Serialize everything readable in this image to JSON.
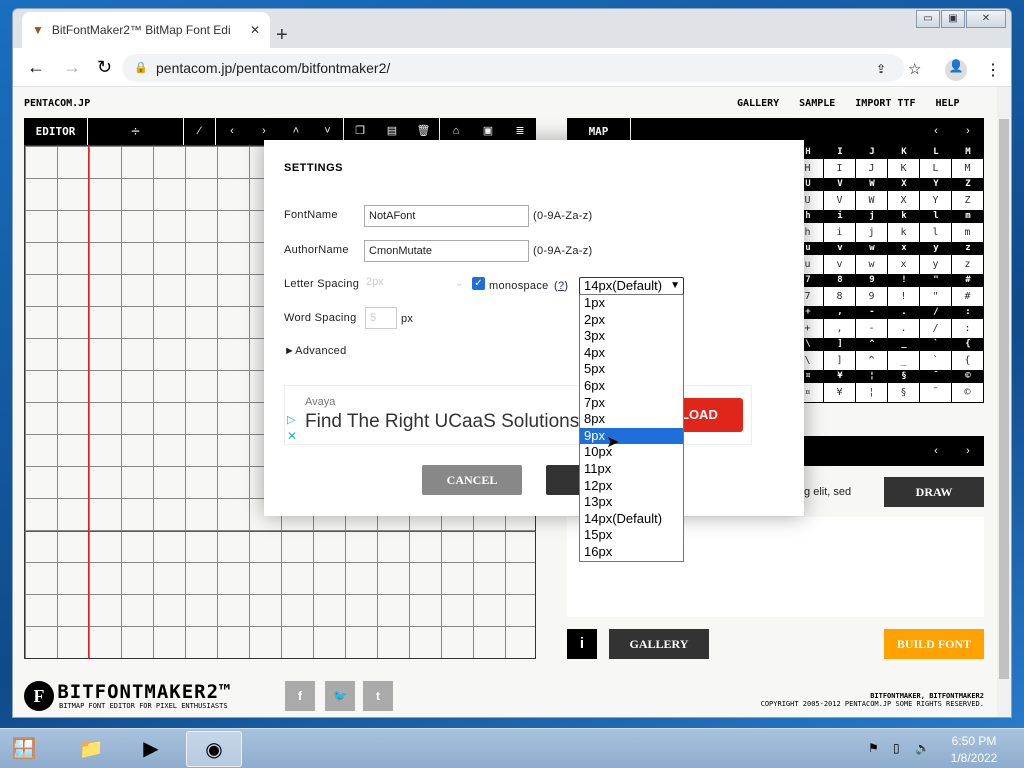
{
  "browser": {
    "tab_title": "BitFontMaker2™ BitMap Font Edi",
    "url": "pentacom.jp/pentacom/bitfontmaker2/"
  },
  "site": {
    "brand": "PENTACOM.JP",
    "nav": [
      "GALLERY",
      "SAMPLE",
      "IMPORT TTF",
      "HELP"
    ]
  },
  "editor": {
    "label": "EDITOR",
    "divide": "÷",
    "tools": [
      "magic-wand-icon",
      "chevron-left-icon",
      "chevron-right-icon",
      "chevron-up-icon",
      "chevron-down-icon",
      "copy-icon",
      "paste-icon",
      "trash-icon",
      "open-folder-icon",
      "save-icon",
      "export-icon"
    ],
    "grid_line_color": "#e02020"
  },
  "map": {
    "label": "MAP",
    "rows": [
      [
        "H",
        "I",
        "J",
        "K",
        "L",
        "M"
      ],
      [
        "U",
        "V",
        "W",
        "X",
        "Y",
        "Z"
      ],
      [
        "h",
        "i",
        "j",
        "k",
        "l",
        "m"
      ],
      [
        "u",
        "v",
        "w",
        "x",
        "y",
        "z"
      ],
      [
        "7",
        "8",
        "9",
        "!",
        "\"",
        "#"
      ],
      [
        "+",
        ",",
        "-",
        ".",
        "/",
        ":"
      ],
      [
        "\\",
        "]",
        "^",
        "_",
        "`",
        "{"
      ],
      [
        "¤",
        "¥",
        "¦",
        "§",
        "¯",
        "©"
      ]
    ]
  },
  "preview": {
    "text_fragment": "cing elit, sed",
    "draw": "DRAW"
  },
  "bottom": {
    "info": "i",
    "gallery": "GALLERY",
    "build": "BUILD FONT",
    "build_color": "#ffa200"
  },
  "footer": {
    "logo": "BITFONTMAKER2™",
    "tagline": "BITMAP FONT EDITOR FOR PIXEL ENTHUSIASTS",
    "credits": "BITFONTMAKER, BITFONTMAKER2",
    "copyright": "COPYRIGHT 2005-2012 PENTACOM.JP SOME RIGHTS RESERVED.",
    "social": [
      "f",
      "t-bird",
      "t"
    ]
  },
  "settings": {
    "title": "SETTINGS",
    "fontname_label": "FontName",
    "fontname": "NotAFont",
    "fontname_hint": "(0-9A-Za-z)",
    "author_label": "AuthorName",
    "author": "CmonMutate",
    "author_hint": "(0-9A-Za-z)",
    "letter_spacing_label": "Letter Spacing",
    "letter_spacing": "2px",
    "monospace_label": "monospace",
    "monospace_checked": true,
    "help": "?",
    "width_value": "14px(Default)",
    "word_spacing_label": "Word Spacing",
    "word_spacing": "5",
    "word_unit": "px",
    "advanced": "►Advanced",
    "cancel": "CANCEL",
    "dropdown_options": [
      "1px",
      "2px",
      "3px",
      "4px",
      "5px",
      "6px",
      "7px",
      "8px",
      "9px",
      "10px",
      "11px",
      "12px",
      "13px",
      "14px(Default)",
      "15px",
      "16px"
    ],
    "highlighted": "9px"
  },
  "ad": {
    "advertiser": "Avaya",
    "headline": "Find The Right UCaaS Solutions",
    "cta": "LOAD",
    "cta_color": "#e0251b"
  },
  "taskbar": {
    "time": "6:50 PM",
    "date": "1/8/2022"
  }
}
